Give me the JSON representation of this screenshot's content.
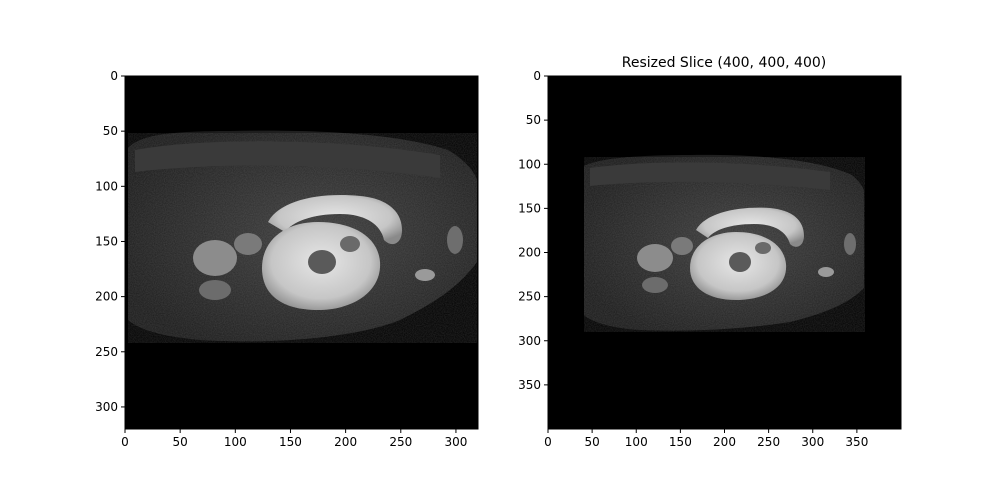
{
  "colors": {
    "background": "#ffffff",
    "image_background": "#000000",
    "axis": "#000000",
    "tissue_dark": "#262626",
    "tissue_mid": "#4a4a4a",
    "organ_bright": "#d0d0d0"
  },
  "panels": [
    {
      "id": "original",
      "title": "",
      "image_size": [
        320,
        320
      ],
      "x_ticks": [
        0,
        50,
        100,
        150,
        200,
        250,
        300
      ],
      "y_ticks": [
        0,
        50,
        100,
        150,
        200,
        250,
        300
      ],
      "image_description": "grayscale MRI slice"
    },
    {
      "id": "resized",
      "title": "Resized Slice (400, 400, 400)",
      "image_size": [
        400,
        400
      ],
      "x_ticks": [
        0,
        50,
        100,
        150,
        200,
        250,
        300,
        350
      ],
      "y_ticks": [
        0,
        50,
        100,
        150,
        200,
        250,
        300,
        350
      ],
      "image_description": "grayscale MRI slice"
    }
  ]
}
